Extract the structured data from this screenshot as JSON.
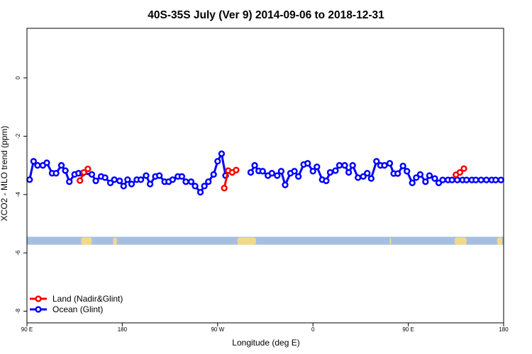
{
  "chart_data": {
    "type": "line",
    "title": "40S-35S July (Ver 9)   2014-09-06 to 2018-12-31",
    "xlabel": "Longitude (deg E)",
    "ylabel": "XCO2 - MLO trend (ppm)",
    "xlim": [
      90,
      450
    ],
    "ylim": [
      -8.4,
      1.7
    ],
    "x_ticks": [
      {
        "value": 90,
        "label": "90 E"
      },
      {
        "value": 162,
        "label": "180"
      },
      {
        "value": 234,
        "label": "90 W"
      },
      {
        "value": 306,
        "label": "0"
      },
      {
        "value": 378,
        "label": "90 E"
      },
      {
        "value": 450,
        "label": "180"
      }
    ],
    "y_ticks": [
      0,
      -2,
      -4,
      -6,
      -8
    ],
    "grid": false,
    "legend_position": "bottom-left",
    "land_band": {
      "y_range": [
        -5.72,
        -5.45
      ],
      "ocean_color": "#a6bfe0",
      "land_color": "#f2d98a",
      "land_segments": [
        [
          131,
          139
        ],
        [
          155,
          158
        ],
        [
          249,
          263
        ],
        [
          364,
          365
        ],
        [
          413,
          422
        ],
        [
          445,
          449
        ]
      ]
    },
    "series": [
      {
        "name": "Land (Nadir&Glint)",
        "color": "#ff0000",
        "x": [
          130,
          133,
          136,
          239,
          242,
          245,
          248,
          414,
          417,
          420
        ],
        "y": [
          -3.52,
          -3.24,
          -3.12,
          -3.78,
          -3.18,
          -3.24,
          -3.16,
          -3.32,
          -3.24,
          -3.11
        ]
      },
      {
        "name": "Ocean (Glint)",
        "color": "#0000ff",
        "x": [
          92,
          95,
          98,
          102,
          105,
          109,
          112,
          116,
          119,
          122,
          126,
          129,
          132,
          139,
          142,
          146,
          149,
          153,
          156,
          160,
          163,
          166,
          169,
          173,
          176,
          180,
          183,
          187,
          190,
          194,
          197,
          200,
          204,
          207,
          210,
          214,
          217,
          221,
          224,
          227,
          231,
          234,
          237,
          240,
          259,
          262,
          265,
          268,
          272,
          275,
          279,
          282,
          285,
          289,
          292,
          295,
          299,
          302,
          306,
          309,
          313,
          316,
          319,
          323,
          326,
          330,
          333,
          336,
          340,
          344,
          347,
          350,
          354,
          357,
          360,
          364,
          367,
          370,
          374,
          377,
          381,
          384,
          387,
          391,
          394,
          398,
          401,
          404,
          408,
          411,
          415,
          419,
          422,
          426,
          429,
          433,
          437,
          441,
          444,
          448
        ],
        "y": [
          -3.49,
          -2.86,
          -3,
          -3,
          -2.91,
          -3.27,
          -3.27,
          -3,
          -3.18,
          -3.56,
          -3.31,
          -3.27,
          -3.27,
          -3.31,
          -3.53,
          -3.38,
          -3.42,
          -3.6,
          -3.49,
          -3.53,
          -3.71,
          -3.49,
          -3.64,
          -3.49,
          -3.49,
          -3.35,
          -3.64,
          -3.38,
          -3.35,
          -3.56,
          -3.56,
          -3.49,
          -3.38,
          -3.38,
          -3.56,
          -3.56,
          -3.71,
          -3.92,
          -3.71,
          -3.56,
          -3.31,
          -2.86,
          -2.6,
          -3.35,
          -3.24,
          -3,
          -3.19,
          -3.2,
          -3.35,
          -3.27,
          -3.35,
          -3.2,
          -3.67,
          -3.27,
          -3.2,
          -3.38,
          -2.97,
          -2.93,
          -3.2,
          -3.05,
          -3.49,
          -3.53,
          -3.24,
          -3.18,
          -3,
          -3,
          -3.24,
          -3,
          -3.42,
          -3.38,
          -3.27,
          -3.45,
          -2.86,
          -3,
          -3,
          -2.93,
          -3.28,
          -3.28,
          -3.02,
          -3.2,
          -3.6,
          -3.42,
          -3.31,
          -3.56,
          -3.35,
          -3.45,
          -3.6,
          -3.5,
          -3.5,
          -3.5,
          -3.5,
          -3.5,
          -3.5,
          -3.5,
          -3.5,
          -3.5,
          -3.5,
          -3.5,
          -3.5,
          -3.5
        ]
      }
    ]
  }
}
